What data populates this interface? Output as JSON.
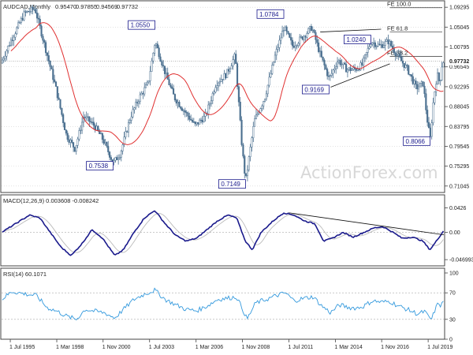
{
  "chart_data": [
    {
      "type": "candlestick",
      "title": "AUDCAD,Monthly",
      "ohlc": {
        "open": "0.95470",
        "high": "0.97855",
        "low": "0.94569",
        "close": "0.97732"
      },
      "last_price": "0.97732",
      "ylim": [
        0.7,
        1.1
      ],
      "yticks": [
        "1.09295",
        "1.05045",
        "1.00795",
        "0.96545",
        "0.92295",
        "0.88045",
        "0.83795",
        "0.79545",
        "0.75295",
        "0.71045"
      ],
      "xlim": [
        1995.0,
        2020.4
      ],
      "xticks": [
        {
          "x": 1995.5,
          "label": "1 Jul 1995"
        },
        {
          "x": 1998.17,
          "label": "1 Mar 1998"
        },
        {
          "x": 2000.83,
          "label": "1 Nov 2000"
        },
        {
          "x": 2003.5,
          "label": "1 Jul 2003"
        },
        {
          "x": 2006.17,
          "label": "1 Mar 2006"
        },
        {
          "x": 2008.83,
          "label": "1 Nov 2008"
        },
        {
          "x": 2011.5,
          "label": "1 Jul 2011"
        },
        {
          "x": 2014.17,
          "label": "1 Mar 2014"
        },
        {
          "x": 2016.83,
          "label": "1 Nov 2016"
        },
        {
          "x": 2019.5,
          "label": "1 Jul 2019"
        }
      ],
      "price_anchors": [
        [
          1995.0,
          0.97
        ],
        [
          1995.6,
          1.02
        ],
        [
          1996.4,
          1.08
        ],
        [
          1997.0,
          1.09
        ],
        [
          1997.5,
          1.02
        ],
        [
          1998.2,
          0.92
        ],
        [
          1998.8,
          0.82
        ],
        [
          1999.3,
          0.79
        ],
        [
          1999.8,
          0.86
        ],
        [
          2000.4,
          0.84
        ],
        [
          2000.9,
          0.81
        ],
        [
          2001.5,
          0.76
        ],
        [
          2001.9,
          0.78
        ],
        [
          2002.5,
          0.86
        ],
        [
          2003.0,
          0.9
        ],
        [
          2003.5,
          0.93
        ],
        [
          2003.9,
          1.02
        ],
        [
          2004.5,
          0.95
        ],
        [
          2005.0,
          0.9
        ],
        [
          2005.6,
          0.87
        ],
        [
          2006.2,
          0.84
        ],
        [
          2006.8,
          0.86
        ],
        [
          2007.4,
          0.93
        ],
        [
          2008.0,
          0.95
        ],
        [
          2008.5,
          0.99
        ],
        [
          2008.9,
          0.79
        ],
        [
          2009.1,
          0.72
        ],
        [
          2009.6,
          0.85
        ],
        [
          2010.2,
          0.9
        ],
        [
          2010.8,
          0.99
        ],
        [
          2011.3,
          1.05
        ],
        [
          2011.8,
          1.01
        ],
        [
          2012.4,
          1.03
        ],
        [
          2012.9,
          1.05
        ],
        [
          2013.4,
          0.99
        ],
        [
          2013.9,
          0.94
        ],
        [
          2014.4,
          0.98
        ],
        [
          2014.9,
          0.96
        ],
        [
          2015.4,
          0.96
        ],
        [
          2015.8,
          0.97
        ],
        [
          2016.3,
          1.02
        ],
        [
          2016.8,
          1.01
        ],
        [
          2017.3,
          1.02
        ],
        [
          2017.8,
          0.99
        ],
        [
          2018.4,
          0.96
        ],
        [
          2018.9,
          0.92
        ],
        [
          2019.3,
          0.93
        ],
        [
          2019.5,
          0.86
        ],
        [
          2019.7,
          0.81
        ],
        [
          2019.9,
          0.9
        ],
        [
          2020.1,
          0.95
        ],
        [
          2020.25,
          0.93
        ],
        [
          2020.4,
          0.977
        ]
      ],
      "annotations": [
        {
          "text": "0.7538",
          "x": 2001.5,
          "y": 0.7538
        },
        {
          "text": "1.0550",
          "x": 2003.9,
          "y": 1.055
        },
        {
          "text": "0.7149",
          "x": 2009.1,
          "y": 0.7149
        },
        {
          "text": "1.0784",
          "x": 2011.3,
          "y": 1.0784
        },
        {
          "text": "0.9169",
          "x": 2013.9,
          "y": 0.9169
        },
        {
          "text": "1.0240",
          "x": 2016.3,
          "y": 1.024
        },
        {
          "text": "0.8066",
          "x": 2019.7,
          "y": 0.8066
        }
      ],
      "fib_levels": [
        {
          "label": "FE 100.0",
          "y": 1.092
        },
        {
          "label": "FE 61.8",
          "y": 1.04
        },
        {
          "label": "FE 38.2",
          "y": 0.988
        }
      ],
      "channel_lines": [
        {
          "from": [
            2013.3,
            1.04
          ],
          "to": [
            2016.8,
            1.046
          ]
        },
        {
          "from": [
            2013.9,
            0.922
          ],
          "to": [
            2017.3,
            0.972
          ]
        }
      ],
      "watermark": "ActionForex.com",
      "colors": {
        "candles": "#4a6f8f",
        "moving_average": "#e03030",
        "boxes": "#1a1a8c"
      }
    },
    {
      "type": "line",
      "title": "MACD(12,26,9) 0.003608 -0.008242",
      "ylim": [
        -0.055,
        0.05
      ],
      "yticks": [
        "0.0426",
        "0.00",
        "-0.046993"
      ],
      "macd_anchors": [
        [
          1995.0,
          0.0
        ],
        [
          1995.8,
          0.015
        ],
        [
          1996.6,
          0.03
        ],
        [
          1997.2,
          0.025
        ],
        [
          1997.8,
          0.0
        ],
        [
          1998.4,
          -0.025
        ],
        [
          1999.0,
          -0.04
        ],
        [
          1999.6,
          -0.02
        ],
        [
          2000.2,
          0.005
        ],
        [
          2000.8,
          -0.01
        ],
        [
          2001.5,
          -0.04
        ],
        [
          2002.0,
          -0.03
        ],
        [
          2002.6,
          0.0
        ],
        [
          2003.2,
          0.025
        ],
        [
          2003.8,
          0.038
        ],
        [
          2004.4,
          0.015
        ],
        [
          2005.0,
          -0.005
        ],
        [
          2005.6,
          -0.015
        ],
        [
          2006.2,
          -0.01
        ],
        [
          2006.8,
          0.005
        ],
        [
          2007.4,
          0.02
        ],
        [
          2008.0,
          0.03
        ],
        [
          2008.5,
          0.025
        ],
        [
          2009.0,
          -0.015
        ],
        [
          2009.4,
          -0.03
        ],
        [
          2009.9,
          0.0
        ],
        [
          2010.6,
          0.02
        ],
        [
          2011.2,
          0.034
        ],
        [
          2011.8,
          0.03
        ],
        [
          2012.4,
          0.02
        ],
        [
          2013.0,
          0.015
        ],
        [
          2013.5,
          -0.015
        ],
        [
          2014.0,
          -0.01
        ],
        [
          2014.6,
          0.0
        ],
        [
          2015.2,
          -0.008
        ],
        [
          2015.8,
          0.0
        ],
        [
          2016.4,
          0.008
        ],
        [
          2016.9,
          0.01
        ],
        [
          2017.5,
          0.0
        ],
        [
          2018.0,
          -0.01
        ],
        [
          2018.6,
          -0.008
        ],
        [
          2019.2,
          -0.015
        ],
        [
          2019.6,
          -0.03
        ],
        [
          2019.9,
          -0.018
        ],
        [
          2020.2,
          -0.005
        ],
        [
          2020.4,
          0.0036
        ]
      ],
      "trend_line": {
        "from": [
          2011.5,
          0.034
        ],
        "to": [
          2020.4,
          -0.004
        ]
      },
      "colors": {
        "macd": "#1a1a8c",
        "signal": "#bbbbbb"
      }
    },
    {
      "type": "line",
      "title": "RSI(14) 60.1071",
      "ylim": [
        0,
        100
      ],
      "yticks": [
        "100",
        "70",
        "30",
        "0"
      ],
      "levels": [
        70,
        30
      ],
      "rsi_anchors": [
        [
          1995.0,
          60
        ],
        [
          1995.6,
          72
        ],
        [
          1996.4,
          68
        ],
        [
          1997.0,
          66
        ],
        [
          1997.6,
          48
        ],
        [
          1998.2,
          42
        ],
        [
          1998.8,
          34
        ],
        [
          1999.3,
          30
        ],
        [
          1999.8,
          45
        ],
        [
          2000.4,
          42
        ],
        [
          2000.9,
          40
        ],
        [
          2001.5,
          32
        ],
        [
          2002.0,
          45
        ],
        [
          2002.6,
          60
        ],
        [
          2003.2,
          68
        ],
        [
          2003.8,
          74
        ],
        [
          2004.4,
          60
        ],
        [
          2005.0,
          52
        ],
        [
          2005.6,
          45
        ],
        [
          2006.2,
          43
        ],
        [
          2006.8,
          50
        ],
        [
          2007.4,
          60
        ],
        [
          2008.0,
          62
        ],
        [
          2008.5,
          64
        ],
        [
          2008.9,
          42
        ],
        [
          2009.1,
          30
        ],
        [
          2009.6,
          55
        ],
        [
          2010.2,
          60
        ],
        [
          2010.8,
          66
        ],
        [
          2011.3,
          70
        ],
        [
          2011.8,
          58
        ],
        [
          2012.4,
          62
        ],
        [
          2012.9,
          64
        ],
        [
          2013.4,
          50
        ],
        [
          2013.9,
          40
        ],
        [
          2014.4,
          52
        ],
        [
          2014.9,
          48
        ],
        [
          2015.4,
          47
        ],
        [
          2015.8,
          50
        ],
        [
          2016.3,
          58
        ],
        [
          2016.8,
          56
        ],
        [
          2017.3,
          57
        ],
        [
          2017.8,
          50
        ],
        [
          2018.4,
          44
        ],
        [
          2018.9,
          38
        ],
        [
          2019.3,
          42
        ],
        [
          2019.5,
          34
        ],
        [
          2019.7,
          30
        ],
        [
          2019.9,
          45
        ],
        [
          2020.1,
          55
        ],
        [
          2020.25,
          50
        ],
        [
          2020.4,
          60.1
        ]
      ],
      "color": "#3399dd"
    }
  ]
}
